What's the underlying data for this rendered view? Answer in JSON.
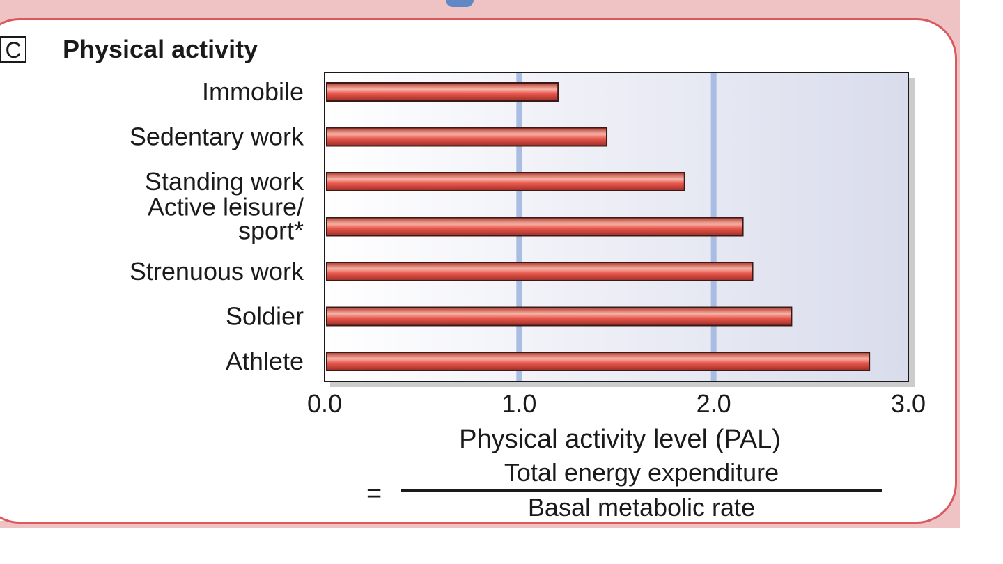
{
  "panel": {
    "letter": "C",
    "title": "Physical activity"
  },
  "colors": {
    "frame": "#d8595e",
    "band": "#efc3c4",
    "bar": "#e8564c",
    "gridline": "#a9bde3",
    "plot_bg_left": "#ffffff",
    "plot_bg_right": "#d9dcec"
  },
  "chart_data": {
    "type": "bar",
    "orientation": "horizontal",
    "title": "Physical activity",
    "categories": [
      "Immobile",
      "Sedentary work",
      "Standing work",
      "Active leisure/ sport*",
      "Strenuous work",
      "Soldier",
      "Athlete"
    ],
    "category_lines": [
      [
        "Immobile"
      ],
      [
        "Sedentary work"
      ],
      [
        "Standing work"
      ],
      [
        "Active leisure/",
        "sport*"
      ],
      [
        "Strenuous work"
      ],
      [
        "Soldier"
      ],
      [
        "Athlete"
      ]
    ],
    "values": [
      1.2,
      1.45,
      1.85,
      2.15,
      2.2,
      2.4,
      2.8
    ],
    "xlim": [
      0,
      3.0
    ],
    "xticks": [
      "0.0",
      "1.0",
      "2.0",
      "3.0"
    ],
    "gridlines": [
      1.0,
      2.0
    ],
    "xlabel": "Physical activity level (PAL)",
    "xlabel_formula": {
      "eq": "=",
      "numerator": "Total energy expenditure",
      "denominator": "Basal metabolic rate"
    },
    "ylabel": "",
    "legend": "none"
  }
}
